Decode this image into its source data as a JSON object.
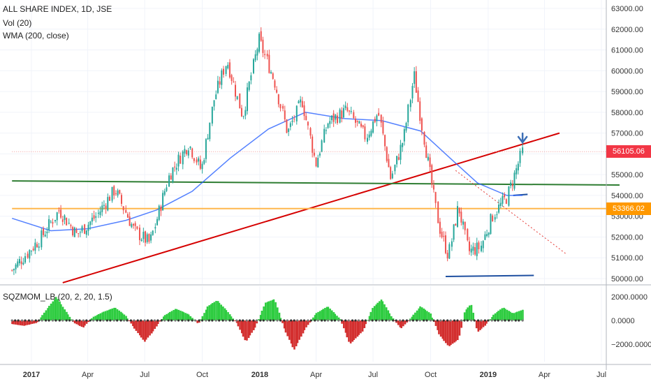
{
  "chart_data": [
    {
      "type": "candlestick",
      "title": "ALL SHARE INDEX, 1D, JSE",
      "indicators": [
        "Vol (20)",
        "WMA (200, close)"
      ],
      "x_tick_labels": [
        "2017",
        "Apr",
        "Jul",
        "Oct",
        "2018",
        "Apr",
        "Jul",
        "Oct",
        "2019",
        "Apr",
        "Jul"
      ],
      "y_tick_labels": [
        "63000.00",
        "62000.00",
        "61000.00",
        "60000.00",
        "59000.00",
        "58000.00",
        "57000.00",
        "56000.00",
        "55000.00",
        "54000.00",
        "53000.00",
        "52000.00",
        "51000.00",
        "50000.00"
      ],
      "ylim": [
        49700,
        63300
      ],
      "price_labels": [
        {
          "value": 56105.06,
          "text": "56105.06",
          "color": "#f23645"
        },
        {
          "value": 53366.02,
          "text": "53366.02",
          "color": "#ff9800"
        }
      ],
      "close_series": [
        {
          "date": "2016-12-01",
          "close": 50400
        },
        {
          "date": "2017-01-15",
          "close": 51900
        },
        {
          "date": "2017-02-15",
          "close": 53300
        },
        {
          "date": "2017-03-15",
          "close": 52100
        },
        {
          "date": "2017-04-15",
          "close": 53000
        },
        {
          "date": "2017-05-15",
          "close": 54300
        },
        {
          "date": "2017-06-15",
          "close": 52300
        },
        {
          "date": "2017-07-10",
          "close": 51700
        },
        {
          "date": "2017-08-10",
          "close": 55000
        },
        {
          "date": "2017-09-10",
          "close": 56500
        },
        {
          "date": "2017-09-30",
          "close": 55200
        },
        {
          "date": "2017-10-20",
          "close": 58600
        },
        {
          "date": "2017-11-10",
          "close": 60500
        },
        {
          "date": "2017-12-05",
          "close": 57800
        },
        {
          "date": "2017-12-31",
          "close": 61500
        },
        {
          "date": "2018-01-25",
          "close": 59500
        },
        {
          "date": "2018-02-15",
          "close": 57000
        },
        {
          "date": "2018-03-10",
          "close": 58600
        },
        {
          "date": "2018-04-01",
          "close": 55500
        },
        {
          "date": "2018-04-20",
          "close": 57500
        },
        {
          "date": "2018-05-20",
          "close": 58100
        },
        {
          "date": "2018-06-20",
          "close": 56800
        },
        {
          "date": "2018-07-10",
          "close": 58000
        },
        {
          "date": "2018-07-30",
          "close": 54800
        },
        {
          "date": "2018-08-20",
          "close": 56800
        },
        {
          "date": "2018-09-05",
          "close": 59800
        },
        {
          "date": "2018-09-25",
          "close": 56000
        },
        {
          "date": "2018-10-15",
          "close": 52500
        },
        {
          "date": "2018-10-30",
          "close": 51100
        },
        {
          "date": "2018-11-15",
          "close": 53500
        },
        {
          "date": "2018-12-01",
          "close": 51300
        },
        {
          "date": "2018-12-20",
          "close": 51500
        },
        {
          "date": "2019-01-10",
          "close": 53100
        },
        {
          "date": "2019-01-31",
          "close": 53900
        },
        {
          "date": "2019-02-15",
          "close": 55200
        },
        {
          "date": "2019-02-25",
          "close": 56105
        }
      ],
      "wma_series": [
        {
          "date": "2016-12-01",
          "value": 52900
        },
        {
          "date": "2017-02-01",
          "value": 52300
        },
        {
          "date": "2017-04-01",
          "value": 52400
        },
        {
          "date": "2017-06-01",
          "value": 52800
        },
        {
          "date": "2017-07-20",
          "value": 53300
        },
        {
          "date": "2017-09-15",
          "value": 54200
        },
        {
          "date": "2017-11-15",
          "value": 55800
        },
        {
          "date": "2018-01-15",
          "value": 57200
        },
        {
          "date": "2018-03-15",
          "value": 58000
        },
        {
          "date": "2018-05-15",
          "value": 57700
        },
        {
          "date": "2018-07-15",
          "value": 57600
        },
        {
          "date": "2018-09-15",
          "value": 57100
        },
        {
          "date": "2018-11-01",
          "value": 55800
        },
        {
          "date": "2018-12-15",
          "value": 54600
        },
        {
          "date": "2019-01-31",
          "value": 54000
        },
        {
          "date": "2019-02-25",
          "value": 54000
        }
      ],
      "drawings": [
        {
          "name": "red-trendline",
          "color": "#d50000",
          "points": [
            {
              "date": "2017-02-20",
              "value": 49800
            },
            {
              "date": "2019-04-25",
              "value": 57000
            }
          ]
        },
        {
          "name": "green-horizontal-line",
          "color": "#2e7d32",
          "points": [
            {
              "date": "2016-12-01",
              "value": 54700
            },
            {
              "date": "2019-07-30",
              "value": 54500
            }
          ]
        },
        {
          "name": "orange-support-line",
          "color": "#ffb74d",
          "points": [
            {
              "date": "2016-12-01",
              "value": 53366
            },
            {
              "date": "2019-07-30",
              "value": 53366
            }
          ]
        },
        {
          "name": "price-level-line",
          "color": "#ef9a9a",
          "points": [
            {
              "date": "2016-12-01",
              "value": 56105
            },
            {
              "date": "2019-07-30",
              "value": 56105
            }
          ]
        },
        {
          "name": "blue-base-line",
          "color": "#1e4fa0",
          "points": [
            {
              "date": "2018-10-25",
              "value": 50100
            },
            {
              "date": "2019-03-15",
              "value": 50150
            }
          ]
        },
        {
          "name": "blue-short-line",
          "color": "#1e4fa0",
          "points": [
            {
              "date": "2019-02-10",
              "value": 54000
            },
            {
              "date": "2019-03-05",
              "value": 54050
            }
          ]
        },
        {
          "name": "dotted-downtrend-line",
          "color": "#e53935",
          "points": [
            {
              "date": "2018-11-10",
              "value": 55200
            },
            {
              "date": "2019-05-05",
              "value": 51200
            }
          ]
        }
      ]
    },
    {
      "type": "histogram",
      "title": "SQZMOM_LB (20, 2, 20, 1.5)",
      "y_tick_labels": [
        "2000.0000",
        "0.0000",
        "−2000.0000"
      ],
      "ylim": [
        -2800,
        2800
      ],
      "colors": {
        "positive": "#2ecc40",
        "negative": "#d32f2f",
        "squeeze_dot": "#333333"
      },
      "values": [
        {
          "date": "2016-12-01",
          "value": -300
        },
        {
          "date": "2016-12-20",
          "value": -450
        },
        {
          "date": "2017-01-10",
          "value": -200
        },
        {
          "date": "2017-01-25",
          "value": 900
        },
        {
          "date": "2017-02-10",
          "value": 2000
        },
        {
          "date": "2017-02-25",
          "value": 800
        },
        {
          "date": "2017-03-10",
          "value": -200
        },
        {
          "date": "2017-03-25",
          "value": -600
        },
        {
          "date": "2017-04-10",
          "value": 300
        },
        {
          "date": "2017-04-25",
          "value": 700
        },
        {
          "date": "2017-05-15",
          "value": 1100
        },
        {
          "date": "2017-06-01",
          "value": 400
        },
        {
          "date": "2017-06-15",
          "value": -700
        },
        {
          "date": "2017-07-01",
          "value": -1800
        },
        {
          "date": "2017-07-15",
          "value": -900
        },
        {
          "date": "2017-08-01",
          "value": 400
        },
        {
          "date": "2017-08-20",
          "value": 1000
        },
        {
          "date": "2017-09-10",
          "value": 500
        },
        {
          "date": "2017-09-25",
          "value": -300
        },
        {
          "date": "2017-10-10",
          "value": 1200
        },
        {
          "date": "2017-10-25",
          "value": 1700
        },
        {
          "date": "2017-11-10",
          "value": 800
        },
        {
          "date": "2017-11-25",
          "value": -200
        },
        {
          "date": "2017-12-10",
          "value": -1800
        },
        {
          "date": "2017-12-25",
          "value": -600
        },
        {
          "date": "2018-01-10",
          "value": 1500
        },
        {
          "date": "2018-01-25",
          "value": 1800
        },
        {
          "date": "2018-02-10",
          "value": -800
        },
        {
          "date": "2018-02-25",
          "value": -2500
        },
        {
          "date": "2018-03-15",
          "value": -700
        },
        {
          "date": "2018-04-01",
          "value": 600
        },
        {
          "date": "2018-04-20",
          "value": 1200
        },
        {
          "date": "2018-05-10",
          "value": 100
        },
        {
          "date": "2018-05-25",
          "value": -2000
        },
        {
          "date": "2018-06-15",
          "value": -900
        },
        {
          "date": "2018-07-01",
          "value": 1100
        },
        {
          "date": "2018-07-15",
          "value": 1800
        },
        {
          "date": "2018-07-30",
          "value": 400
        },
        {
          "date": "2018-08-15",
          "value": -700
        },
        {
          "date": "2018-09-01",
          "value": 300
        },
        {
          "date": "2018-09-15",
          "value": 1200
        },
        {
          "date": "2018-10-01",
          "value": 600
        },
        {
          "date": "2018-10-15",
          "value": -1200
        },
        {
          "date": "2018-10-30",
          "value": -2200
        },
        {
          "date": "2018-11-15",
          "value": -1600
        },
        {
          "date": "2018-11-25",
          "value": 800
        },
        {
          "date": "2018-12-05",
          "value": 1400
        },
        {
          "date": "2018-12-15",
          "value": -1000
        },
        {
          "date": "2018-12-28",
          "value": -400
        },
        {
          "date": "2019-01-10",
          "value": 500
        },
        {
          "date": "2019-01-25",
          "value": 1100
        },
        {
          "date": "2019-02-10",
          "value": 600
        },
        {
          "date": "2019-02-25",
          "value": 900
        }
      ]
    }
  ]
}
